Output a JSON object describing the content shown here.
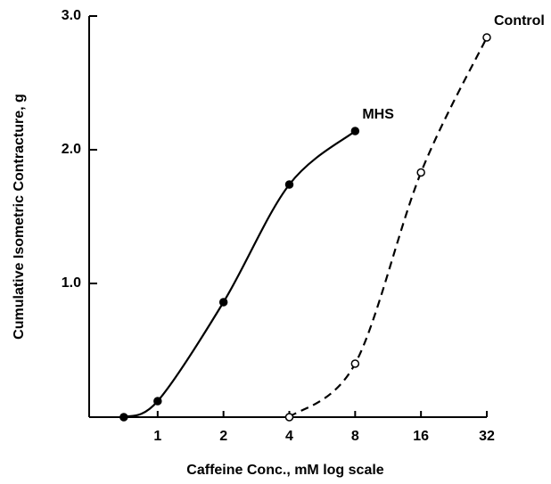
{
  "chart_data": {
    "type": "line",
    "x_label": "Caffeine Conc., mM log scale",
    "y_label": "Cumulative Isometric Contracture, g",
    "x_scale": "log",
    "xlim": [
      0.5,
      32
    ],
    "xticks": [
      1,
      2,
      4,
      8,
      16,
      32
    ],
    "ylim": [
      0,
      3
    ],
    "yticks": [
      {
        "value": 1,
        "label": "1.0"
      },
      {
        "value": 2,
        "label": "2.0"
      },
      {
        "value": 3,
        "label": "3.0"
      }
    ],
    "series": [
      {
        "name": "MHS",
        "color": "#000000",
        "marker": "filled",
        "dashed": false,
        "x": [
          0.7,
          1,
          2,
          4,
          8
        ],
        "values": [
          0,
          0.12,
          0.86,
          1.74,
          2.14
        ]
      },
      {
        "name": "Control",
        "color": "#000000",
        "marker": "open",
        "dashed": true,
        "x": [
          4,
          8,
          16,
          32
        ],
        "values": [
          0,
          0.4,
          1.83,
          2.84
        ]
      }
    ]
  }
}
